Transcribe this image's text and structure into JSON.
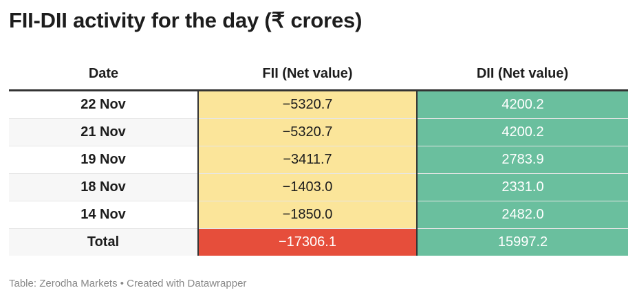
{
  "header": {
    "title": "FII-DII activity for the day (₹ crores)"
  },
  "chart_data": {
    "type": "table",
    "columns": [
      "Date",
      "FII (Net value)",
      "DII (Net value)"
    ],
    "rows": [
      {
        "date": "22 Nov",
        "fii": "−5320.7",
        "dii": "4200.2",
        "fii_value": -5320.7,
        "dii_value": 4200.2
      },
      {
        "date": "21 Nov",
        "fii": "−5320.7",
        "dii": "4200.2",
        "fii_value": -5320.7,
        "dii_value": 4200.2
      },
      {
        "date": "19 Nov",
        "fii": "−3411.7",
        "dii": "2783.9",
        "fii_value": -3411.7,
        "dii_value": 2783.9
      },
      {
        "date": "18 Nov",
        "fii": "−1403.0",
        "dii": "2331.0",
        "fii_value": -1403.0,
        "dii_value": 2331.0
      },
      {
        "date": "14 Nov",
        "fii": "−1850.0",
        "dii": "2482.0",
        "fii_value": -1850.0,
        "dii_value": 2482.0
      },
      {
        "date": "Total",
        "fii": "−17306.1",
        "dii": "15997.2",
        "fii_value": -17306.1,
        "dii_value": 15997.2
      }
    ]
  },
  "colors": {
    "fii_cell": "#fbe59a",
    "fii_total": "#e64e3b",
    "dii_cell": "#6abf9e",
    "dii_text": "#ffffff",
    "total_fii_text": "#ffffff"
  },
  "footer": {
    "text": "Table: Zerodha Markets • Created with Datawrapper"
  }
}
